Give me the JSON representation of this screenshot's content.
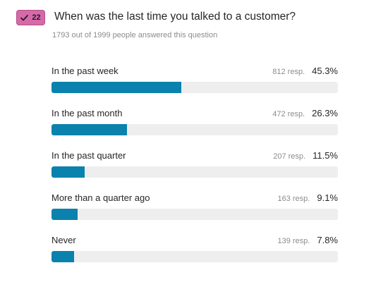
{
  "badge": {
    "icon": "check-icon",
    "count": "22",
    "color": "#d56aa8"
  },
  "question": {
    "title": "When was the last time you talked to a customer?",
    "answered_text": "1793 out of 1999 people answered this question"
  },
  "accent_color": "#0a82ad",
  "options": [
    {
      "label": "In the past week",
      "responses": "812 resp.",
      "percent": "45.3%",
      "fraction": 0.453
    },
    {
      "label": "In the past month",
      "responses": "472 resp.",
      "percent": "26.3%",
      "fraction": 0.263
    },
    {
      "label": "In the past quarter",
      "responses": "207 resp.",
      "percent": "11.5%",
      "fraction": 0.115
    },
    {
      "label": "More than a quarter ago",
      "responses": "163 resp.",
      "percent": "9.1%",
      "fraction": 0.091
    },
    {
      "label": "Never",
      "responses": "139 resp.",
      "percent": "7.8%",
      "fraction": 0.078
    }
  ]
}
